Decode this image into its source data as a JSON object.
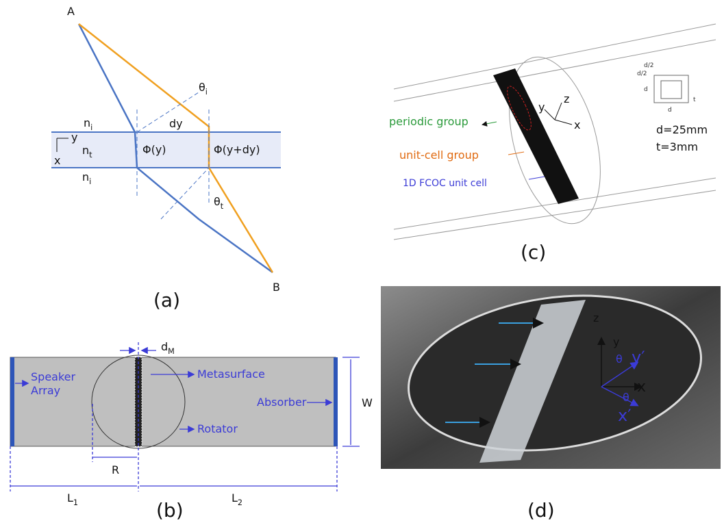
{
  "panel_a": {
    "label": "(a)",
    "point_a": "A",
    "point_b": "B",
    "axis_y": "y",
    "axis_x": "x",
    "n_top": {
      "base": "n",
      "sub": "i"
    },
    "n_middle": {
      "base": "n",
      "sub": "t"
    },
    "n_bottom": {
      "base": "n",
      "sub": "i"
    },
    "dy": "dy",
    "theta_i": {
      "base": "θ",
      "sub": "i"
    },
    "theta_t": {
      "base": "θ",
      "sub": "t"
    },
    "phi_y": "Φ(y)",
    "phi_y_dy": "Φ(y+dy)"
  },
  "panel_b": {
    "label": "(b)",
    "d_m": {
      "base": "d",
      "sub": "M"
    },
    "speaker": [
      "Speaker",
      "Array"
    ],
    "metasurface": "Metasurface",
    "absorber": "Absorber",
    "rotator": "Rotator",
    "w": "W",
    "r": "R",
    "l1": {
      "base": "L",
      "sub": "1"
    },
    "l2": {
      "base": "L",
      "sub": "2"
    }
  },
  "panel_c": {
    "label": "(c)",
    "periodic_group": "periodic group",
    "unit_cell_group": "unit-cell group",
    "unit_cell": "1D FCOC unit cell",
    "d_value": "d=25mm",
    "t_value": "t=3mm",
    "axis_y": "y",
    "axis_z": "z",
    "axis_x": "x",
    "inset": {
      "d_half_1": "d/2",
      "d_half_2": "d/2",
      "d_left": "d",
      "d_bottom": "d",
      "t": "t"
    }
  },
  "panel_d": {
    "label": "(d)",
    "axis_z": "z",
    "axis_y": "y",
    "theta_1": "θ",
    "axis_y_prime": "y′",
    "axis_x": "x",
    "theta_2": "θ",
    "axis_x_prime": "x′"
  }
}
